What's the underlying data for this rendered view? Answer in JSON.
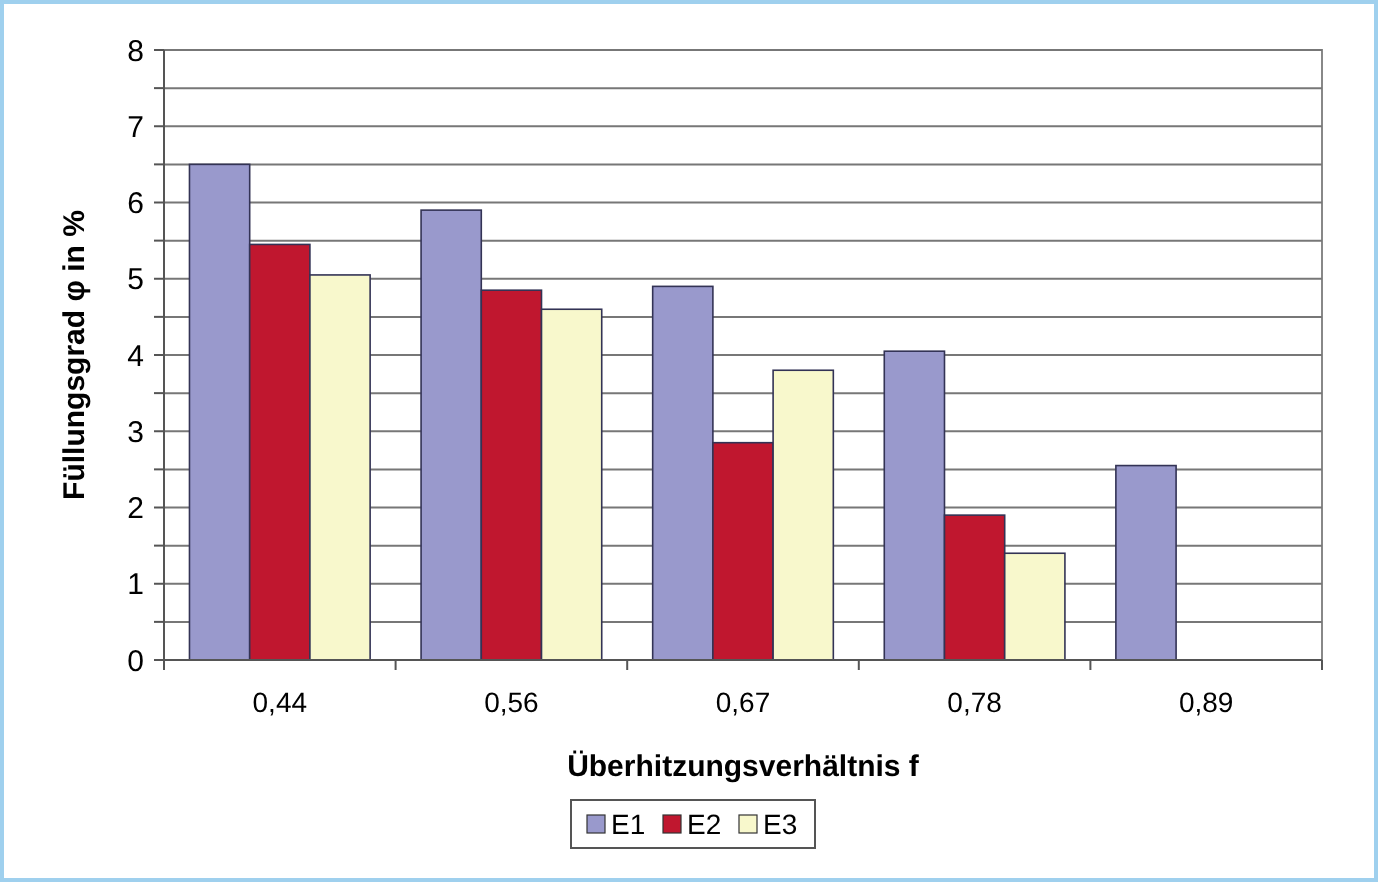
{
  "chart_data": {
    "type": "bar",
    "xlabel": "Überhitzungsverhältnis f",
    "ylabel": "Füllungsgrad φ in %",
    "categories": [
      "0,44",
      "0,56",
      "0,67",
      "0,78",
      "0,89"
    ],
    "series": [
      {
        "name": "E1",
        "color": "#9999cc",
        "values": [
          6.5,
          5.9,
          4.9,
          4.05,
          2.55
        ]
      },
      {
        "name": "E2",
        "color": "#c0172f",
        "values": [
          5.45,
          4.85,
          2.85,
          1.9,
          null
        ]
      },
      {
        "name": "E3",
        "color": "#f8f8cc",
        "values": [
          5.05,
          4.6,
          3.8,
          1.4,
          null
        ]
      }
    ],
    "ylim": [
      0,
      8
    ],
    "yticks": [
      0,
      {
        "value": 0.5,
        "label": null
      },
      1,
      {
        "value": 1.5,
        "label": null
      },
      2,
      {
        "value": 2.5,
        "label": null
      },
      3,
      {
        "value": 3.5,
        "label": null
      },
      4,
      {
        "value": 4.5,
        "label": null
      },
      5,
      {
        "value": 5.5,
        "label": null
      },
      6,
      {
        "value": 6.5,
        "label": null
      },
      7,
      {
        "value": 7.5,
        "label": null
      },
      8
    ],
    "grid": true,
    "legend": "bottom"
  }
}
